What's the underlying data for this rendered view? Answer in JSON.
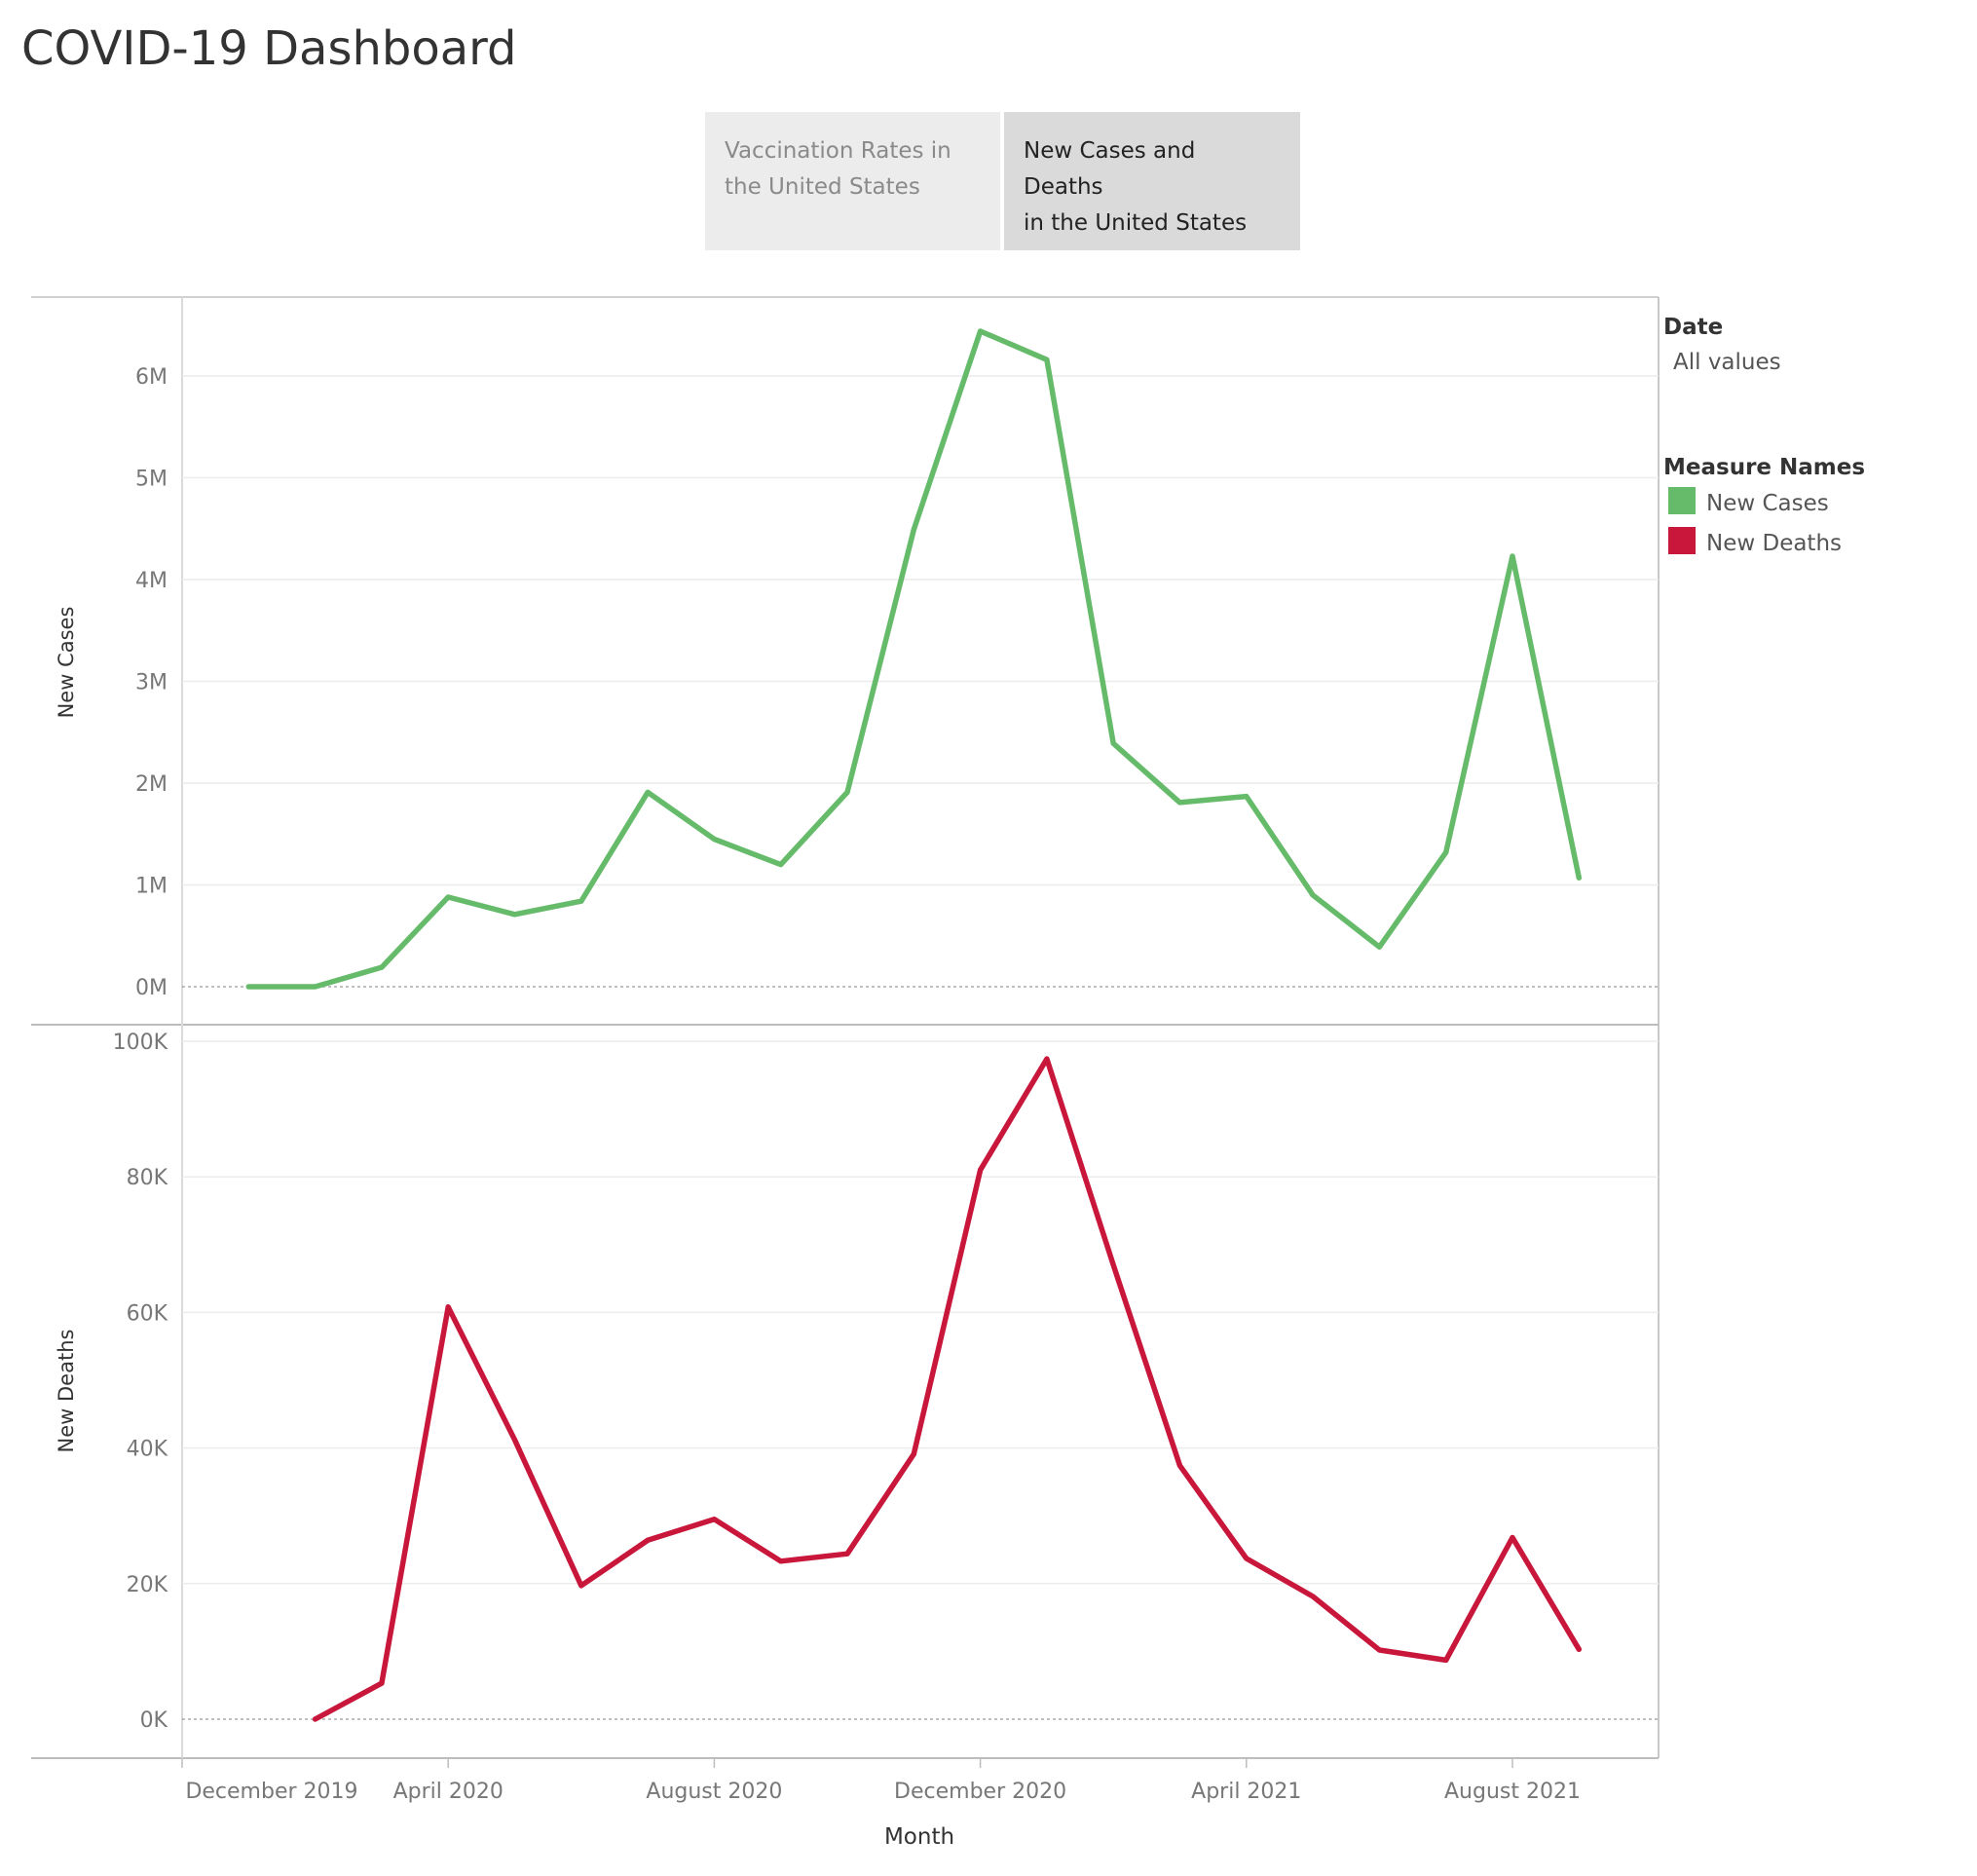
{
  "dashboard": {
    "title": "COVID-19 Dashboard",
    "tabs": [
      {
        "label_line1": "Vaccination Rates in",
        "label_line2": "the United States",
        "active": false
      },
      {
        "label_line1": "New Cases and Deaths",
        "label_line2": "in the United States",
        "active": true
      }
    ]
  },
  "filter": {
    "title": "Date",
    "value": "All values"
  },
  "legend": {
    "title": "Measure Names",
    "items": [
      {
        "label": "New Cases",
        "color": "#66bb6a"
      },
      {
        "label": "New Deaths",
        "color": "#c8173b"
      }
    ]
  },
  "chart_data": [
    {
      "type": "line",
      "ylabel": "New Cases",
      "xlabel": "Month",
      "ylim": [
        0,
        6600000
      ],
      "yticks": [
        0,
        1000000,
        2000000,
        3000000,
        4000000,
        5000000,
        6000000
      ],
      "ytick_labels": [
        "0M",
        "1M",
        "2M",
        "3M",
        "4M",
        "5M",
        "6M"
      ],
      "color": "#66bb6a",
      "x": [
        "2020-01",
        "2020-02",
        "2020-03",
        "2020-04",
        "2020-05",
        "2020-06",
        "2020-07",
        "2020-08",
        "2020-09",
        "2020-10",
        "2020-11",
        "2020-12",
        "2021-01",
        "2021-02",
        "2021-03",
        "2021-04",
        "2021-05",
        "2021-06",
        "2021-07",
        "2021-08",
        "2021-09"
      ],
      "values": [
        0,
        0,
        190000,
        880000,
        710000,
        840000,
        1910000,
        1450000,
        1200000,
        1910000,
        4490000,
        6440000,
        6160000,
        2390000,
        1810000,
        1870000,
        900000,
        390000,
        1320000,
        4230000,
        1070000
      ]
    },
    {
      "type": "line",
      "ylabel": "New Deaths",
      "xlabel": "Month",
      "ylim": [
        0,
        100000
      ],
      "yticks": [
        0,
        20000,
        40000,
        60000,
        80000,
        100000
      ],
      "ytick_labels": [
        "0K",
        "20K",
        "40K",
        "60K",
        "80K",
        "100K"
      ],
      "color": "#c8173b",
      "x": [
        "2020-02",
        "2020-03",
        "2020-04",
        "2020-05",
        "2020-06",
        "2020-07",
        "2020-08",
        "2020-09",
        "2020-10",
        "2020-11",
        "2020-12",
        "2021-01",
        "2021-02",
        "2021-03",
        "2021-04",
        "2021-05",
        "2021-06",
        "2021-07",
        "2021-08",
        "2021-09"
      ],
      "values": [
        0,
        5300,
        60800,
        41200,
        19700,
        26400,
        29500,
        23300,
        24400,
        39100,
        81000,
        97400,
        67000,
        37400,
        23700,
        18100,
        10200,
        8700,
        26800,
        10300
      ]
    }
  ],
  "x_axis": {
    "title": "Month",
    "ticks": [
      {
        "x": "2019-12",
        "label": "December 2019"
      },
      {
        "x": "2020-04",
        "label": "April 2020"
      },
      {
        "x": "2020-08",
        "label": "August 2020"
      },
      {
        "x": "2020-12",
        "label": "December 2020"
      },
      {
        "x": "2021-04",
        "label": "April 2021"
      },
      {
        "x": "2021-08",
        "label": "August 2021"
      }
    ]
  }
}
